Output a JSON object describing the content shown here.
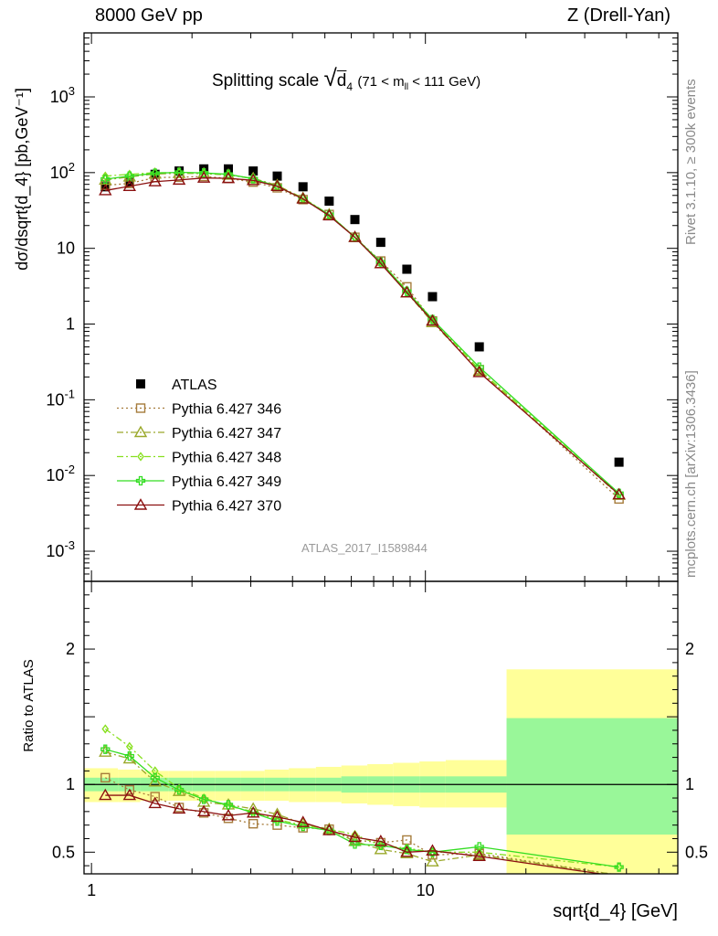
{
  "header": {
    "left": "8000 GeV pp",
    "right": "Z (Drell-Yan)"
  },
  "side_labels": {
    "rivet": "Rivet 3.1.10, ≥ 300k events",
    "mcplots": "mcplots.cern.ch [arXiv:1306.3436]"
  },
  "watermark": "ATLAS_2017_I1589844",
  "title": {
    "main": "Splitting scale",
    "symbol": "√",
    "var": "d",
    "var_sub": "4",
    "range_pre": "(71 < m",
    "range_sub": "ll",
    "range_post": " < 111 GeV)"
  },
  "xlabel": "sqrt{d_4} [GeV]",
  "ylabel_top": "dσ/dsqrt{d_4} [pb,GeV⁻¹]",
  "ylabel_ratio": "Ratio to ATLAS",
  "colors": {
    "ATLAS": "#000000",
    "346": "#a67c3c",
    "347": "#9aa82a",
    "348": "#88e020",
    "349": "#33dd22",
    "370": "#8b1010",
    "band_inner": "#99f799",
    "band_outer": "#ffff99"
  },
  "chart_data": [
    {
      "type": "scatter",
      "panel": "main",
      "x_scale": "log",
      "y_scale": "log",
      "xlim": [
        0.95,
        57
      ],
      "ylim": [
        0.0004,
        7000
      ],
      "x_ticks": [
        1,
        10
      ],
      "y_ticks": [
        "10^-3",
        "10^-2",
        "10^-1",
        "1",
        "10",
        "10^2",
        "10^3"
      ],
      "legend_position": "middle-left",
      "series": [
        {
          "name": "ATLAS",
          "style": "square",
          "x": [
            1.1,
            1.3,
            1.55,
            1.83,
            2.17,
            2.57,
            3.05,
            3.6,
            4.3,
            5.15,
            6.15,
            7.35,
            8.8,
            10.5,
            14.5,
            38
          ],
          "y": [
            65,
            75,
            95,
            105,
            112,
            112,
            105,
            90,
            65,
            42,
            24,
            12,
            5.3,
            2.3,
            0.5,
            0.015
          ]
        },
        {
          "name": "Pythia 6.427 346",
          "style": "open-square-dotted",
          "x": [
            1.1,
            1.3,
            1.55,
            1.83,
            2.17,
            2.57,
            3.05,
            3.6,
            4.3,
            5.15,
            6.15,
            7.35,
            8.8,
            10.5,
            14.5,
            38
          ],
          "y": [
            68,
            72,
            86,
            87,
            89,
            84,
            75,
            63,
            44,
            28,
            14,
            6.8,
            3.1,
            1.1,
            0.25,
            0.0049
          ]
        },
        {
          "name": "Pythia 6.427 347",
          "style": "open-triangle-dashdot",
          "x": [
            1.1,
            1.3,
            1.55,
            1.83,
            2.17,
            2.57,
            3.05,
            3.6,
            4.3,
            5.15,
            6.15,
            7.35,
            8.8,
            10.5,
            14.5,
            38
          ],
          "y": [
            80,
            88,
            96,
            98,
            97,
            93,
            84,
            68,
            46,
            28,
            14,
            6.3,
            2.6,
            1.05,
            0.24,
            0.0055
          ]
        },
        {
          "name": "Pythia 6.427 348",
          "style": "open-diamond-dashdot",
          "x": [
            1.1,
            1.3,
            1.55,
            1.83,
            2.17,
            2.57,
            3.05,
            3.6,
            4.3,
            5.15,
            6.15,
            7.35,
            8.8,
            10.5,
            14.5,
            38
          ],
          "y": [
            90,
            95,
            100,
            100,
            98,
            94,
            83,
            66,
            46,
            28,
            14,
            6.5,
            2.8,
            1.15,
            0.25,
            0.0058
          ]
        },
        {
          "name": "Pythia 6.427 349",
          "style": "open-cross-solid",
          "x": [
            1.1,
            1.3,
            1.55,
            1.83,
            2.17,
            2.57,
            3.05,
            3.6,
            4.3,
            5.15,
            6.15,
            7.35,
            8.8,
            10.5,
            14.5,
            38
          ],
          "y": [
            82,
            90,
            98,
            101,
            99,
            95,
            83,
            66,
            45,
            28,
            14,
            6.6,
            2.7,
            1.15,
            0.27,
            0.0058
          ]
        },
        {
          "name": "Pythia 6.427 370",
          "style": "open-triangle-solid",
          "x": [
            1.1,
            1.3,
            1.55,
            1.83,
            2.17,
            2.57,
            3.05,
            3.6,
            4.3,
            5.15,
            6.15,
            7.35,
            8.8,
            10.5,
            14.5,
            38
          ],
          "y": [
            58,
            66,
            76,
            80,
            85,
            84,
            79,
            66,
            45,
            27,
            14,
            6.3,
            2.6,
            1.1,
            0.23,
            0.0056
          ]
        }
      ]
    },
    {
      "type": "line",
      "panel": "ratio",
      "x_scale": "log",
      "xlim": [
        0.95,
        57
      ],
      "ylim": [
        0.34,
        2.5
      ],
      "y_ticks": [
        0.5,
        1,
        2
      ],
      "reference_line": 1,
      "bands": {
        "edges": [
          0.95,
          1.2,
          1.4,
          1.7,
          2.0,
          2.35,
          2.8,
          3.3,
          3.9,
          4.7,
          5.6,
          6.7,
          8.0,
          9.6,
          11.5,
          17.5,
          57
        ],
        "outer_lo": [
          0.87,
          0.87,
          0.88,
          0.88,
          0.88,
          0.88,
          0.88,
          0.88,
          0.87,
          0.87,
          0.86,
          0.85,
          0.84,
          0.83,
          0.83,
          0.34
        ],
        "outer_hi": [
          1.12,
          1.11,
          1.1,
          1.1,
          1.1,
          1.1,
          1.1,
          1.11,
          1.12,
          1.13,
          1.14,
          1.15,
          1.16,
          1.17,
          1.18,
          1.85
        ],
        "inner_lo": [
          0.95,
          0.95,
          0.95,
          0.95,
          0.95,
          0.95,
          0.95,
          0.95,
          0.95,
          0.95,
          0.94,
          0.94,
          0.94,
          0.94,
          0.94,
          0.63
        ],
        "inner_hi": [
          1.05,
          1.05,
          1.05,
          1.05,
          1.05,
          1.05,
          1.05,
          1.05,
          1.05,
          1.05,
          1.06,
          1.06,
          1.06,
          1.06,
          1.06,
          1.49
        ]
      },
      "series": [
        {
          "name": "Pythia 6.427 346",
          "x": [
            1.1,
            1.3,
            1.55,
            1.83,
            2.17,
            2.57,
            3.05,
            3.6,
            4.3,
            5.15,
            6.15,
            7.35,
            8.8,
            10.5,
            14.5,
            38
          ],
          "y": [
            1.05,
            0.96,
            0.91,
            0.83,
            0.79,
            0.75,
            0.71,
            0.7,
            0.68,
            0.67,
            0.59,
            0.57,
            0.59,
            0.48,
            0.49,
            0.33
          ]
        },
        {
          "name": "Pythia 6.427 347",
          "x": [
            1.1,
            1.3,
            1.55,
            1.83,
            2.17,
            2.57,
            3.05,
            3.6,
            4.3,
            5.15,
            6.15,
            7.35,
            8.8,
            10.5,
            14.5,
            38
          ],
          "y": [
            1.24,
            1.19,
            1.02,
            0.95,
            0.87,
            0.85,
            0.82,
            0.78,
            0.71,
            0.67,
            0.58,
            0.52,
            0.49,
            0.43,
            0.48,
            0.33
          ]
        },
        {
          "name": "Pythia 6.427 348",
          "x": [
            1.1,
            1.3,
            1.55,
            1.83,
            2.17,
            2.57,
            3.05,
            3.6,
            4.3,
            5.15,
            6.15,
            7.35,
            8.8,
            10.5,
            14.5,
            38
          ],
          "y": [
            1.41,
            1.28,
            1.1,
            0.97,
            0.9,
            0.84,
            0.8,
            0.74,
            0.7,
            0.67,
            0.63,
            0.55,
            0.53,
            0.5,
            0.5,
            0.39
          ]
        },
        {
          "name": "Pythia 6.427 349",
          "x": [
            1.1,
            1.3,
            1.55,
            1.83,
            2.17,
            2.57,
            3.05,
            3.6,
            4.3,
            5.15,
            6.15,
            7.35,
            8.8,
            10.5,
            14.5,
            38
          ],
          "y": [
            1.26,
            1.21,
            1.05,
            0.96,
            0.89,
            0.85,
            0.79,
            0.73,
            0.69,
            0.66,
            0.56,
            0.55,
            0.52,
            0.5,
            0.54,
            0.39
          ]
        },
        {
          "name": "Pythia 6.427 370",
          "x": [
            1.1,
            1.3,
            1.55,
            1.83,
            2.17,
            2.57,
            3.05,
            3.6,
            4.3,
            5.15,
            6.15,
            7.35,
            8.8,
            10.5,
            14.5,
            38
          ],
          "y": [
            0.92,
            0.92,
            0.86,
            0.82,
            0.8,
            0.77,
            0.79,
            0.76,
            0.72,
            0.66,
            0.61,
            0.58,
            0.5,
            0.51,
            0.47,
            0.32
          ]
        }
      ]
    }
  ]
}
